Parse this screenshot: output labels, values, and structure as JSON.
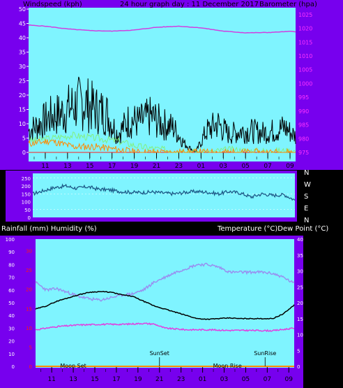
{
  "colors": {
    "frame": "#7700ee",
    "plot_bg": "#7ff4ff",
    "tick_white": "#ffffff",
    "tick_magenta": "#ff33ff",
    "tick_red": "#ff1818",
    "wind_gust": "#000000",
    "wind_avg": "#80f080",
    "wind_low": "#ff8a00",
    "barometer": "#d040e0",
    "direction": "#1e5a88",
    "temperature": "#000000",
    "dewpoint": "#e040e0",
    "humidity": "#9890f0",
    "rain": "#ff8a00"
  },
  "top": {
    "title": "24 hour graph day : 11 December 2017",
    "left_label": "Windspeed (kph)",
    "right_label": "Barometer (hpa)"
  },
  "direction_labels": [
    "N",
    "W",
    "S",
    "E",
    "N"
  ],
  "bottom": {
    "left_label": "Rainfall (mm)  Humidity (%)",
    "right_label": "Temperature (°C)Dew Point (°C)",
    "markers": [
      {
        "name": "sunset",
        "text": "SunSet",
        "hour": 21.0,
        "row": "high"
      },
      {
        "name": "sunrise",
        "text": "SunRise",
        "hour": 6.8,
        "row": "high"
      },
      {
        "name": "moonset",
        "text": "Moon Set",
        "hour": 13.0,
        "row": "low"
      },
      {
        "name": "moonrise",
        "text": "Moon Rise",
        "hour": 3.3,
        "row": "low"
      }
    ]
  },
  "chart_data": [
    {
      "type": "line",
      "name": "wind-barometer",
      "x_tick_labels": [
        "11",
        "13",
        "15",
        "17",
        "19",
        "21",
        "23",
        "01",
        "03",
        "05",
        "07",
        "09"
      ],
      "x_hours": [
        11,
        13,
        15,
        17,
        19,
        21,
        23,
        25,
        27,
        29,
        31,
        33
      ],
      "x_range_hours": [
        9.5,
        33.5
      ],
      "y_left": {
        "ticks": [
          0,
          5,
          10,
          15,
          20,
          25,
          30,
          35,
          40,
          45,
          50
        ],
        "range": [
          0,
          50
        ]
      },
      "y_right": {
        "ticks": [
          975,
          980,
          985,
          990,
          995,
          1000,
          1005,
          1010,
          1015,
          1020,
          1025
        ],
        "range": [
          975,
          1027
        ]
      },
      "barometer_series": {
        "x": [
          9.5,
          11,
          13,
          15,
          17,
          19,
          21,
          23,
          25,
          27,
          29,
          31,
          33,
          33.5
        ],
        "y": [
          1021.2,
          1020.8,
          1019.8,
          1019.2,
          1019.0,
          1019.4,
          1020.4,
          1020.8,
          1020.2,
          1019.0,
          1018.4,
          1018.5,
          1018.9,
          1018.8
        ]
      },
      "wind_gust_envelope": {
        "x": [
          9.5,
          10.5,
          11.5,
          12.5,
          13.5,
          14.5,
          15.5,
          16.5,
          17.5,
          18.5,
          19.5,
          20.5,
          21.5,
          22.5,
          23.5,
          24.5,
          25.5,
          26.5,
          27.5,
          28.5,
          29.5,
          30.5,
          31.5,
          32.5,
          33.5
        ],
        "y": [
          12,
          16,
          20,
          22,
          26,
          28,
          24,
          22,
          10,
          18,
          17,
          20,
          16,
          14,
          5,
          0,
          12,
          16,
          10,
          12,
          12,
          11,
          12,
          14,
          9
        ]
      },
      "wind_average_envelope": {
        "x": [
          9.5,
          11.5,
          13.5,
          15.5,
          17.5,
          19.5,
          21.5,
          23.5,
          25.5,
          27.5,
          29.5,
          31.5,
          33.5
        ],
        "y": [
          4,
          5,
          6,
          5,
          4,
          2,
          1,
          0.5,
          0,
          1,
          0.5,
          0.5,
          0.5
        ]
      },
      "wind_low_envelope": {
        "x": [
          9.5,
          11.5,
          13.5,
          15.5,
          17.5,
          19.5,
          33.5
        ],
        "y": [
          3,
          4,
          2,
          2,
          1,
          0,
          0
        ]
      }
    },
    {
      "type": "line",
      "name": "wind-direction",
      "x_range_hours": [
        9.5,
        33.5
      ],
      "y": {
        "ticks": [
          0,
          50,
          100,
          150,
          200,
          250
        ],
        "range": [
          0,
          280
        ]
      },
      "series": {
        "x": [
          9.5,
          10.5,
          11.5,
          12.5,
          13.5,
          14.5,
          15.5,
          16.5,
          17.5,
          18.5,
          19.5,
          20.5,
          21.5,
          22.5,
          23.5,
          24.5,
          25.5,
          26.5,
          27.5,
          28.5,
          29.5,
          30.5,
          31.5,
          32.5,
          33.5
        ],
        "y": [
          150,
          170,
          190,
          200,
          185,
          195,
          180,
          175,
          165,
          160,
          158,
          162,
          155,
          150,
          160,
          165,
          160,
          150,
          165,
          155,
          130,
          150,
          140,
          145,
          110
        ]
      }
    },
    {
      "type": "line",
      "name": "temp-humidity-rain",
      "x_tick_labels": [
        "11",
        "13",
        "15",
        "17",
        "19",
        "21",
        "23",
        "01",
        "03",
        "05",
        "07",
        "09"
      ],
      "x_hours": [
        11,
        13,
        15,
        17,
        19,
        21,
        23,
        25,
        27,
        29,
        31,
        33
      ],
      "x_range_hours": [
        9.5,
        33.5
      ],
      "y_left": {
        "ticks": [
          0,
          10,
          20,
          30,
          40,
          50,
          60,
          70,
          80,
          90,
          100
        ],
        "range": [
          0,
          100
        ]
      },
      "y_left_rain": {
        "ticks": [
          0,
          5,
          10,
          15,
          20,
          25,
          30
        ],
        "range": [
          0,
          33
        ]
      },
      "y_right": {
        "ticks": [
          0,
          5,
          10,
          15,
          20,
          25,
          30,
          35,
          40
        ],
        "range": [
          0,
          40
        ]
      },
      "temperature": {
        "x": [
          9.5,
          10.5,
          11.5,
          12.5,
          13.5,
          14.5,
          15.5,
          16.5,
          17.5,
          18.5,
          19.5,
          20.5,
          21.5,
          22.5,
          23.5,
          24.5,
          25.5,
          26.5,
          27.5,
          28.5,
          29.5,
          30.5,
          31.5,
          32.5,
          33.5
        ],
        "y": [
          18,
          19,
          20.5,
          21.5,
          22.5,
          23.3,
          23.5,
          23.3,
          22.5,
          22,
          20.5,
          19,
          18,
          17,
          16,
          15,
          14.8,
          15,
          15.2,
          15,
          15,
          15,
          15,
          16.5,
          19.3
        ]
      },
      "dew_point": {
        "x": [
          9.5,
          11.5,
          13.5,
          15.5,
          17.5,
          19.5,
          20.5,
          21.5,
          23.5,
          25.5,
          27.5,
          29.5,
          31.5,
          33.5
        ],
        "y": [
          11.5,
          12.5,
          13,
          13.2,
          13.2,
          13.5,
          13.3,
          12,
          11.5,
          11.5,
          11.3,
          11.3,
          11.2,
          12
        ]
      },
      "humidity": {
        "x": [
          9.5,
          10.5,
          11.5,
          12.5,
          13.5,
          14.5,
          15.5,
          16.5,
          17.5,
          18.5,
          19.5,
          20.5,
          21.5,
          22.5,
          23.5,
          24.5,
          25.5,
          26.5,
          27.5,
          28.5,
          29.5,
          30.5,
          31.5,
          32.5,
          33.5
        ],
        "y": [
          66,
          60,
          61,
          58,
          55,
          53,
          52,
          54,
          56,
          57,
          60,
          66,
          70,
          74,
          77,
          80,
          80,
          78,
          74,
          74,
          74,
          74,
          73,
          70,
          65
        ]
      },
      "rainfall": {
        "x": [
          9.5,
          33.5
        ],
        "y": [
          0,
          0
        ]
      }
    }
  ]
}
